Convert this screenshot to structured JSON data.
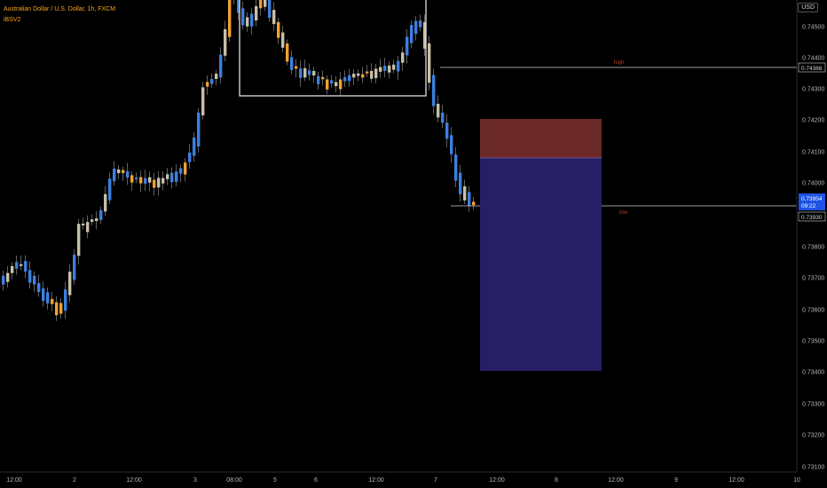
{
  "header": {
    "symbol_line": "Australian Dollar / U.S. Dollar, 1h, FXCM",
    "indicator": "iBSV2"
  },
  "currency_button": "USD",
  "price_axis": {
    "ticks": [
      "0.74500",
      "0.74400",
      "0.74300",
      "0.74200",
      "0.74100",
      "0.74000",
      "0.73900",
      "0.73800",
      "0.73700",
      "0.73600",
      "0.73500",
      "0.73400",
      "0.73300",
      "0.73200",
      "0.73100"
    ],
    "high_label": "0.74366",
    "current_price": "0.73954",
    "countdown": "09:22",
    "low_label": "0.73930"
  },
  "time_axis": {
    "ticks": [
      "12:00",
      "2",
      "12:00",
      "3",
      "08:00",
      "5",
      "6",
      "12:00",
      "7",
      "12:00",
      "8",
      "12:00",
      "9",
      "12:00",
      "10"
    ]
  },
  "annotations": {
    "high_text": "high",
    "low_text": "low"
  },
  "colors": {
    "bull": "#3d7fe0",
    "bear": "#f0a030",
    "neutral": "#c8bfa8",
    "stop_zone": "#7a2a2a",
    "target_zone": "#2a2270",
    "level_line": "#d0d0d0",
    "annotation_text": "#c0392b"
  }
}
